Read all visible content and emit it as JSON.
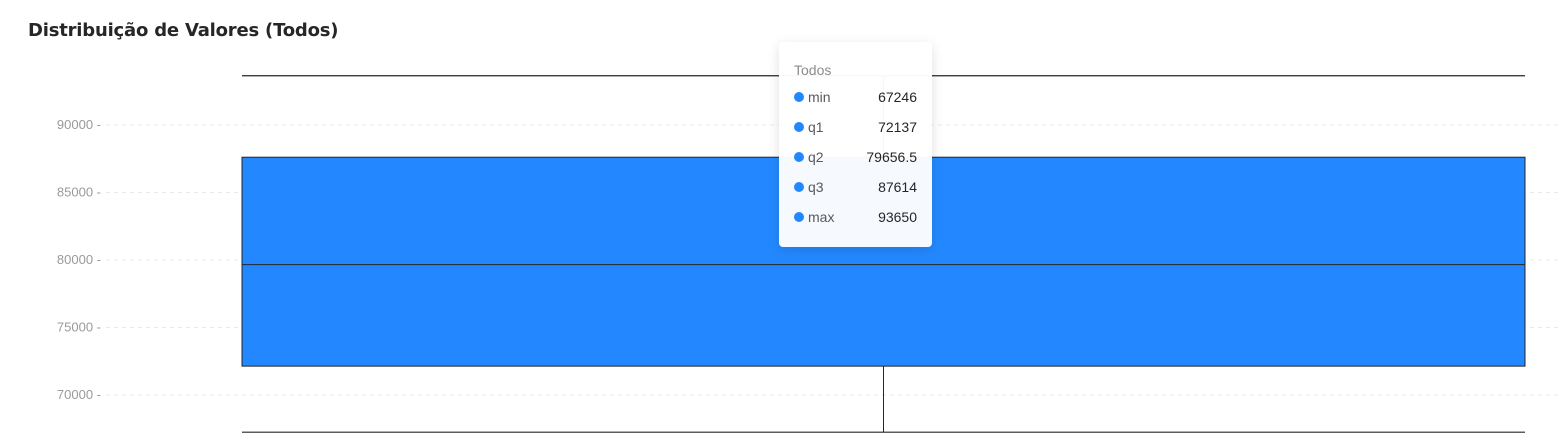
{
  "title": "Distribuição de Valores (Todos)",
  "colors": {
    "box_fill": "#2388FF",
    "line": "#262626",
    "grid": "#e8e8e8",
    "tick_text": "#9a9a9a"
  },
  "chart_data": {
    "type": "box",
    "title": "Distribuição de Valores (Todos)",
    "series": [
      {
        "name": "Todos",
        "min": 67246,
        "q1": 72137,
        "q2": 79656.5,
        "q3": 87614,
        "max": 93650
      }
    ],
    "yticks": [
      70000,
      75000,
      80000,
      85000,
      90000
    ],
    "ytick_labels": [
      "70000 -",
      "75000 -",
      "80000 -",
      "85000 -",
      "90000 -"
    ],
    "grid": "dashed horizontal"
  },
  "tooltip": {
    "title": "Todos",
    "rows": [
      {
        "name": "min",
        "value": "67246"
      },
      {
        "name": "q1",
        "value": "72137"
      },
      {
        "name": "q2",
        "value": "79656.5"
      },
      {
        "name": "q3",
        "value": "87614"
      },
      {
        "name": "max",
        "value": "93650"
      }
    ]
  }
}
